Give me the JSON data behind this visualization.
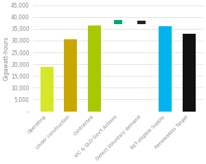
{
  "categories": [
    "Operating",
    "Under construction",
    "Contracted",
    "VIC & QLD Gov't Actions",
    "Defect Voluntary demand",
    "RET-eligible Supply",
    "Renewables Target"
  ],
  "values": [
    19000,
    30500,
    36500,
    38800,
    38500,
    36000,
    33000
  ],
  "bar_bottoms": [
    0,
    0,
    0,
    37000,
    37000,
    0,
    0
  ],
  "bar_colors": [
    "#d4e827",
    "#c8a800",
    "#aac800",
    "#00a86b",
    "#222222",
    "#00b4f0",
    "#111111"
  ],
  "bar_widths": [
    0.55,
    0.55,
    0.55,
    0.35,
    0.35,
    0.55,
    0.55
  ],
  "ylabel": "Gigawatt-hours",
  "ylim": [
    0,
    45000
  ],
  "yticks": [
    0,
    5000,
    10000,
    15000,
    20000,
    25000,
    30000,
    35000,
    40000,
    45000
  ],
  "ytick_labels": [
    "-",
    "5,000",
    "10,000",
    "15,000",
    "20,000",
    "25,000",
    "30,000",
    "35,000",
    "40,000",
    "45,000"
  ],
  "background_color": "#ffffff",
  "grid_color": "#dddddd",
  "label_fontsize": 5.0,
  "ylabel_fontsize": 6.0,
  "tick_fontsize": 5.5
}
